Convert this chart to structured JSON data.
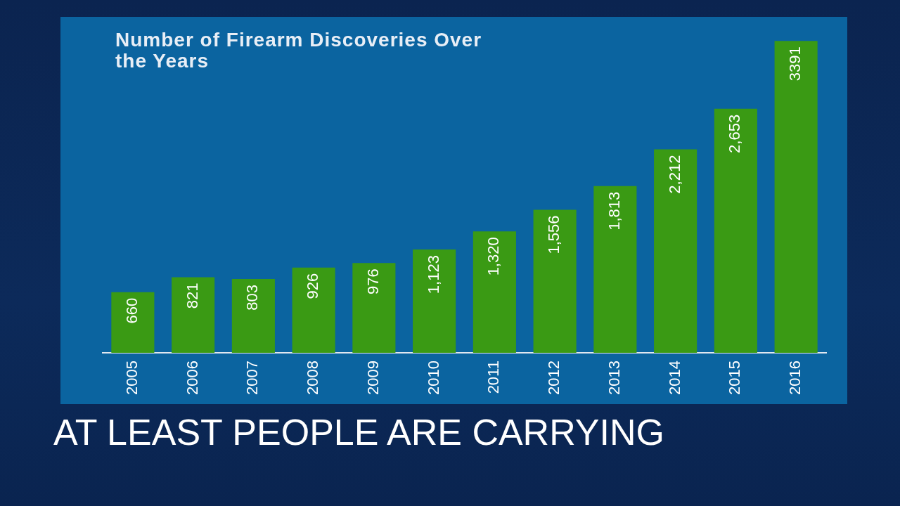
{
  "chart_data": {
    "type": "bar",
    "title": "Number of Firearm Discoveries Over the Years",
    "categories": [
      "2005",
      "2006",
      "2007",
      "2008",
      "2009",
      "2010",
      "2011",
      "2012",
      "2013",
      "2014",
      "2015",
      "2016"
    ],
    "values": [
      660,
      821,
      803,
      926,
      976,
      1123,
      1320,
      1556,
      1813,
      2212,
      2653,
      3391
    ],
    "value_labels": [
      "660",
      "821",
      "803",
      "926",
      "976",
      "1,123",
      "1,320",
      "1,556",
      "1,813",
      "2,212",
      "2,653",
      "3391"
    ],
    "color": "#3a9a14",
    "grid": false,
    "legend": false,
    "tick_labels": "x",
    "annotations": [
      "AT LEAST PEOPLE ARE CARRYING"
    ]
  }
}
